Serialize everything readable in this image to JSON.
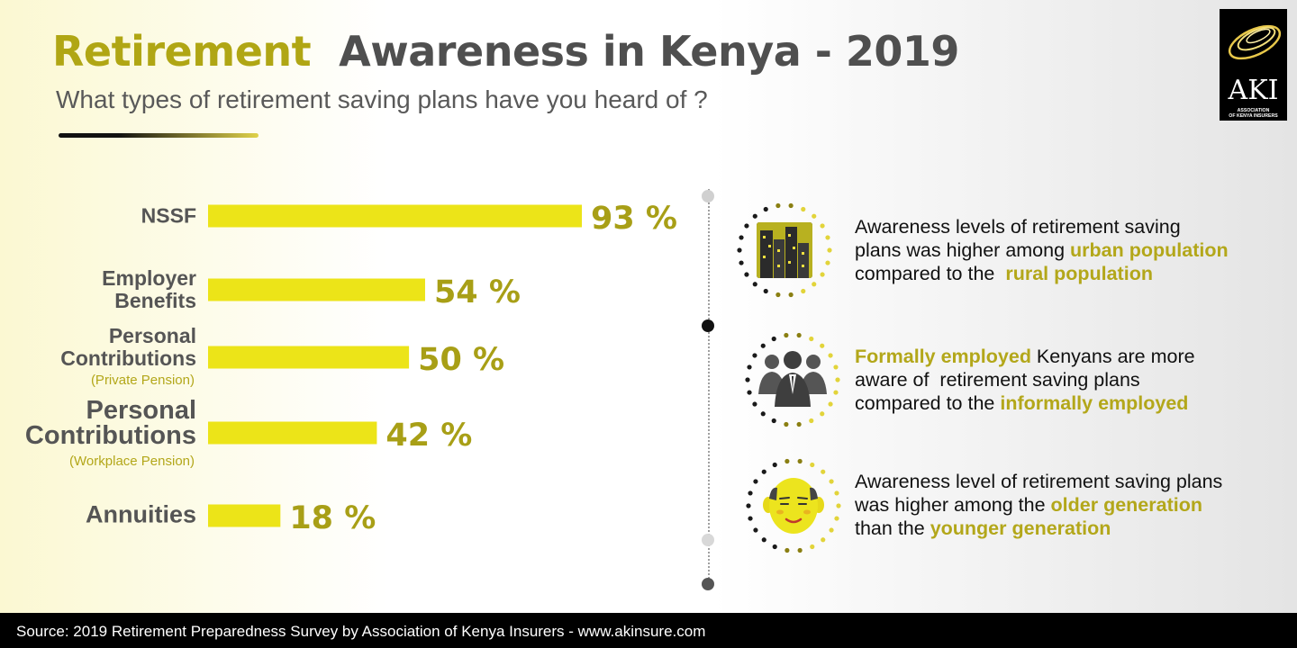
{
  "header": {
    "title_word1": "Retirement",
    "title_word2": "Awareness  in Kenya",
    "title_word3": " - 2019",
    "subtitle": "What types of retirement saving plans have you heard of ?"
  },
  "logo": {
    "text": "AKI",
    "subtext_line1": "ASSOCIATION",
    "subtext_line2": "OF KENYA INSURERS"
  },
  "chart_data": {
    "type": "bar",
    "orientation": "horizontal",
    "categories": [
      {
        "label_lines": [
          "NSSF"
        ],
        "note": ""
      },
      {
        "label_lines": [
          "Employer",
          "Benefits"
        ],
        "note": ""
      },
      {
        "label_lines": [
          "Personal",
          "Contributions"
        ],
        "note": "(Private Pension)"
      },
      {
        "label_lines": [
          "Personal",
          "Contributions"
        ],
        "note": "(Workplace Pension)"
      },
      {
        "label_lines": [
          "Annuities"
        ],
        "note": ""
      }
    ],
    "values": [
      93,
      54,
      50,
      42,
      18
    ],
    "value_labels": [
      "93 %",
      "54 %",
      "50 %",
      "42 %",
      "18 %"
    ],
    "unit": "%",
    "xlim": [
      0,
      100
    ],
    "grid": false,
    "legend": "none",
    "bar_color": "#ece418",
    "value_color": "#a89f16",
    "label_color": "#555555"
  },
  "insights": [
    {
      "icon": "city-buildings-icon",
      "lines": [
        [
          {
            "t": "Awareness levels of retirement saving",
            "h": false
          }
        ],
        [
          {
            "t": "plans was higher among ",
            "h": false
          },
          {
            "t": "urban population",
            "h": true
          }
        ],
        [
          {
            "t": "compared to the  ",
            "h": false
          },
          {
            "t": "rural population",
            "h": true
          }
        ]
      ]
    },
    {
      "icon": "business-people-icon",
      "lines": [
        [
          {
            "t": "Formally employed",
            "h": true
          },
          {
            "t": " Kenyans are more",
            "h": false
          }
        ],
        [
          {
            "t": "aware of  retirement saving plans",
            "h": false
          }
        ],
        [
          {
            "t": "compared to the ",
            "h": false
          },
          {
            "t": "informally employed",
            "h": true
          }
        ]
      ]
    },
    {
      "icon": "elderly-face-icon",
      "lines": [
        [
          {
            "t": "Awareness level of retirement saving plans",
            "h": false
          }
        ],
        [
          {
            "t": "was higher among the ",
            "h": false
          },
          {
            "t": "older generation",
            "h": true
          }
        ],
        [
          {
            "t": "than the ",
            "h": false
          },
          {
            "t": "younger generation",
            "h": true
          }
        ]
      ]
    }
  ],
  "footer": {
    "source": "Source: 2019 Retirement Preparedness Survey by Association of Kenya Insurers - www.akinsure.com"
  },
  "colors": {
    "accent": "#b0a614",
    "dark_text": "#4f4f4f",
    "highlight": "#b3a71a"
  }
}
